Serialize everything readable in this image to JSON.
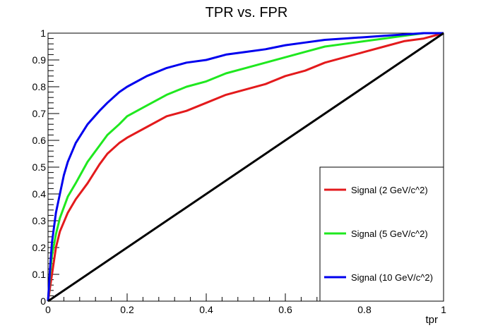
{
  "chart_data": {
    "type": "line",
    "title": "TPR vs. FPR",
    "xlabel": "tpr",
    "ylabel": "",
    "xlim": [
      0,
      1
    ],
    "ylim": [
      0,
      1
    ],
    "x_ticks": [
      "0",
      "0.2",
      "0.4",
      "0.6",
      "0.8",
      "1"
    ],
    "y_ticks": [
      "0",
      "0.1",
      "0.2",
      "0.3",
      "0.4",
      "0.5",
      "0.6",
      "0.7",
      "0.8",
      "0.9",
      "1"
    ],
    "legend_position": "bottom-right",
    "series": [
      {
        "name": "Signal (2 GeV/c^2)",
        "color": "#e31a1c",
        "points": [
          [
            0,
            0
          ],
          [
            0.01,
            0.1
          ],
          [
            0.02,
            0.2
          ],
          [
            0.03,
            0.26
          ],
          [
            0.05,
            0.33
          ],
          [
            0.07,
            0.38
          ],
          [
            0.1,
            0.44
          ],
          [
            0.13,
            0.51
          ],
          [
            0.15,
            0.55
          ],
          [
            0.18,
            0.59
          ],
          [
            0.2,
            0.61
          ],
          [
            0.25,
            0.65
          ],
          [
            0.3,
            0.69
          ],
          [
            0.35,
            0.71
          ],
          [
            0.4,
            0.74
          ],
          [
            0.45,
            0.77
          ],
          [
            0.5,
            0.79
          ],
          [
            0.55,
            0.81
          ],
          [
            0.6,
            0.84
          ],
          [
            0.65,
            0.86
          ],
          [
            0.7,
            0.89
          ],
          [
            0.75,
            0.91
          ],
          [
            0.8,
            0.93
          ],
          [
            0.85,
            0.95
          ],
          [
            0.9,
            0.97
          ],
          [
            0.95,
            0.98
          ],
          [
            1,
            1
          ]
        ]
      },
      {
        "name": "Signal (5 GeV/c^2)",
        "color": "#1fe81f",
        "points": [
          [
            0,
            0
          ],
          [
            0.005,
            0.1
          ],
          [
            0.01,
            0.17
          ],
          [
            0.02,
            0.25
          ],
          [
            0.03,
            0.31
          ],
          [
            0.05,
            0.39
          ],
          [
            0.07,
            0.44
          ],
          [
            0.1,
            0.52
          ],
          [
            0.13,
            0.58
          ],
          [
            0.15,
            0.62
          ],
          [
            0.18,
            0.66
          ],
          [
            0.2,
            0.69
          ],
          [
            0.25,
            0.73
          ],
          [
            0.3,
            0.77
          ],
          [
            0.35,
            0.8
          ],
          [
            0.4,
            0.82
          ],
          [
            0.45,
            0.85
          ],
          [
            0.5,
            0.87
          ],
          [
            0.55,
            0.89
          ],
          [
            0.6,
            0.91
          ],
          [
            0.65,
            0.93
          ],
          [
            0.7,
            0.95
          ],
          [
            0.75,
            0.96
          ],
          [
            0.8,
            0.97
          ],
          [
            0.85,
            0.98
          ],
          [
            0.9,
            0.99
          ],
          [
            0.95,
            1
          ],
          [
            1,
            1
          ]
        ]
      },
      {
        "name": "Signal (10 GeV/c^2)",
        "color": "#0000ee",
        "points": [
          [
            0,
            0
          ],
          [
            0.005,
            0.12
          ],
          [
            0.01,
            0.22
          ],
          [
            0.02,
            0.33
          ],
          [
            0.03,
            0.4
          ],
          [
            0.04,
            0.47
          ],
          [
            0.05,
            0.52
          ],
          [
            0.07,
            0.59
          ],
          [
            0.1,
            0.66
          ],
          [
            0.13,
            0.71
          ],
          [
            0.15,
            0.74
          ],
          [
            0.18,
            0.78
          ],
          [
            0.2,
            0.8
          ],
          [
            0.25,
            0.84
          ],
          [
            0.3,
            0.87
          ],
          [
            0.35,
            0.89
          ],
          [
            0.4,
            0.9
          ],
          [
            0.45,
            0.92
          ],
          [
            0.5,
            0.93
          ],
          [
            0.55,
            0.94
          ],
          [
            0.6,
            0.955
          ],
          [
            0.65,
            0.965
          ],
          [
            0.7,
            0.975
          ],
          [
            0.75,
            0.98
          ],
          [
            0.8,
            0.985
          ],
          [
            0.85,
            0.99
          ],
          [
            0.9,
            0.995
          ],
          [
            0.95,
            1
          ],
          [
            1,
            1
          ]
        ]
      },
      {
        "name": "",
        "color": "#000000",
        "points": [
          [
            0,
            0
          ],
          [
            1,
            1
          ]
        ]
      }
    ]
  }
}
